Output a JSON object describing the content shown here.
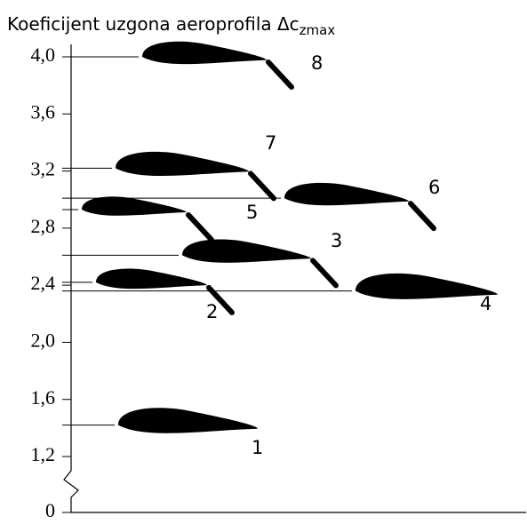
{
  "chart_data": {
    "type": "airfoil",
    "title": "Koeficijent uzgona aeroprofila Δc",
    "title_subscript": "zmax",
    "categories": [
      "8",
      "7",
      "6",
      "5",
      "3",
      "2",
      "4",
      "1"
    ],
    "values": [
      4.0,
      3.22,
      3.01,
      2.93,
      2.61,
      2.42,
      2.36,
      1.42
    ],
    "ylim": [
      0,
      4.0
    ],
    "axis_break": [
      0,
      1.2
    ],
    "yticks": [
      {
        "value": 4.0,
        "label": "4,0"
      },
      {
        "value": 3.6,
        "label": "3,6"
      },
      {
        "value": 3.2,
        "label": "3,2"
      },
      {
        "value": 2.8,
        "label": "2,8"
      },
      {
        "value": 2.4,
        "label": "2,4"
      },
      {
        "value": 2.0,
        "label": "2,0"
      },
      {
        "value": 1.6,
        "label": "1,6"
      },
      {
        "value": 1.2,
        "label": "1,2"
      },
      0
    ],
    "color": "#000000"
  }
}
